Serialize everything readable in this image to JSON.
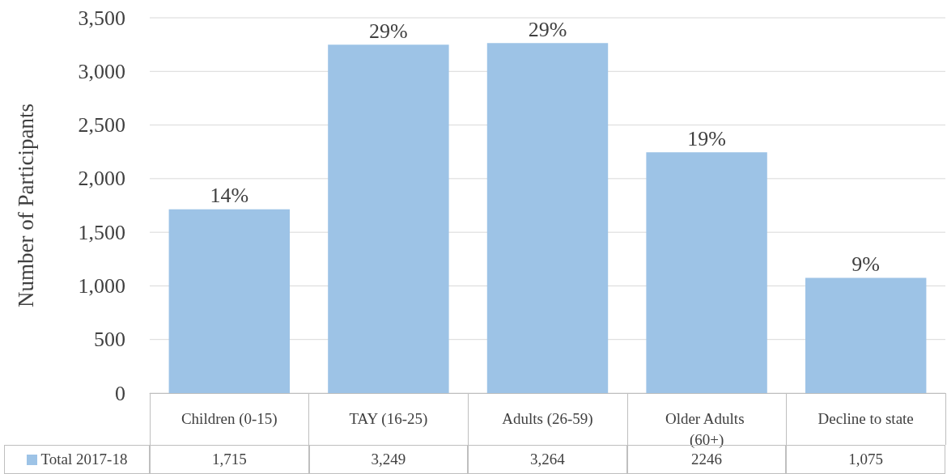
{
  "chart_data": {
    "type": "bar",
    "ylabel": "Number of Participants",
    "categories": [
      "Children (0-15)",
      "TAY (16-25)",
      "Adults (26-59)",
      "Older Adults (60+)",
      "Decline to state"
    ],
    "series": [
      {
        "name": "Total 2017-18",
        "color": "#9dc3e6",
        "values": [
          1715,
          3249,
          3264,
          2246,
          1075
        ],
        "value_labels": [
          "1,715",
          "3,249",
          "3,264",
          "2246",
          "1,075"
        ]
      }
    ],
    "annotations": [
      {
        "text": "14%",
        "x": "Children (0-15)",
        "y": 1715
      },
      {
        "text": "29%",
        "x": "TAY (16-25)",
        "y": 3249
      },
      {
        "text": "29%",
        "x": "Adults (26-59)",
        "y": 3264
      },
      {
        "text": "19%",
        "x": "Older Adults (60+)",
        "y": 2246
      },
      {
        "text": "9%",
        "x": "Decline to state",
        "y": 1075
      }
    ],
    "ylim": [
      0,
      3500
    ],
    "yticks": [
      0,
      500,
      {
        "value": 1000,
        "label": "1,000"
      },
      {
        "value": 1500,
        "label": "1,500"
      },
      {
        "value": 2000,
        "label": "2,000"
      },
      {
        "value": 2500,
        "label": "2,500"
      },
      {
        "value": 3000,
        "label": "3,000"
      },
      {
        "value": 3500,
        "label": "3,500"
      }
    ],
    "grid": "y",
    "legend": "bottom"
  }
}
